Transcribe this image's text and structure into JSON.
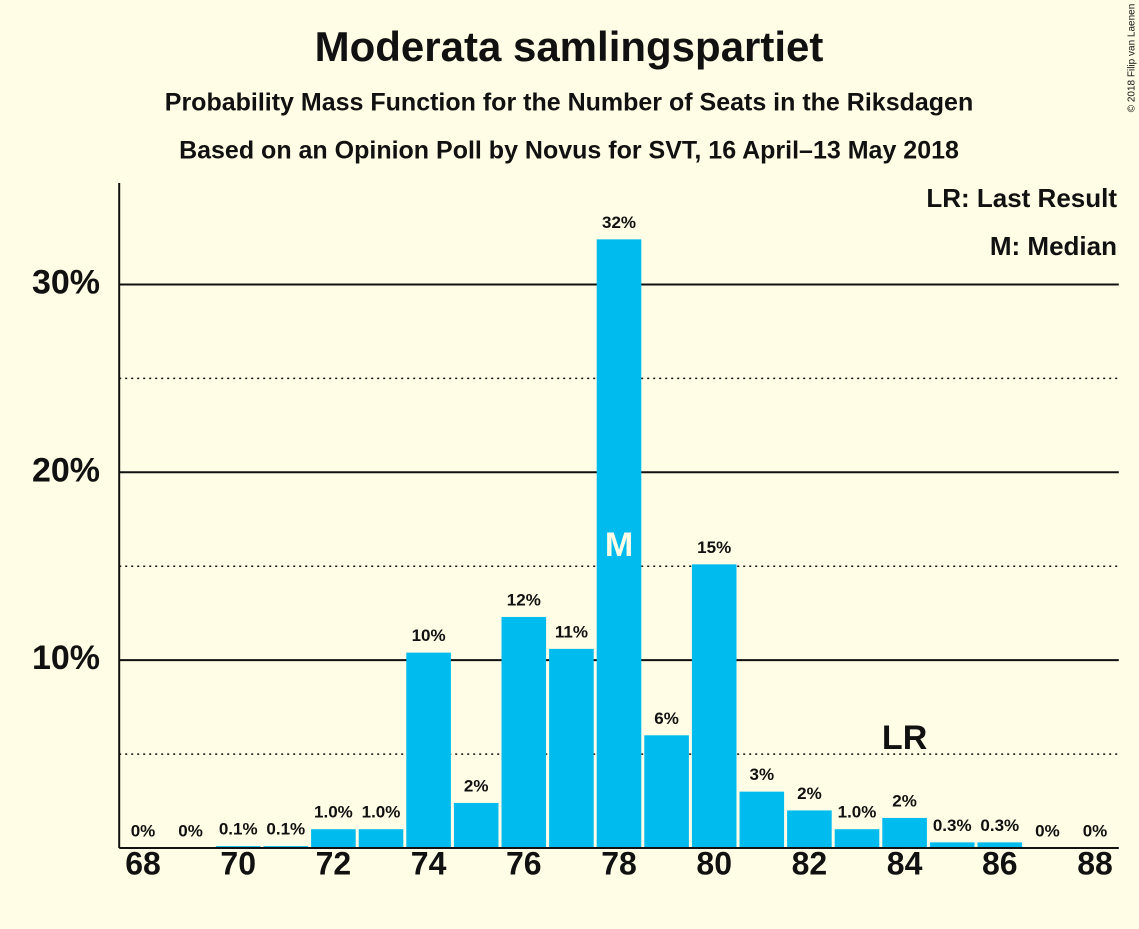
{
  "chart_data": {
    "type": "bar",
    "title": "Moderata samlingspartiet",
    "subtitle": "Probability Mass Function for the Number of Seats in the Riksdagen",
    "subtitle2": "Based on an Opinion Poll by Novus for SVT, 16 April–13 May 2018",
    "copyright": "© 2018 Filip van Laenen",
    "legend": [
      "LR: Last Result",
      "M: Median"
    ],
    "categories": [
      68,
      null,
      70,
      null,
      72,
      null,
      74,
      null,
      76,
      null,
      78,
      null,
      80,
      null,
      82,
      null,
      84,
      null,
      86,
      null,
      88
    ],
    "seats": [
      68,
      69,
      70,
      71,
      72,
      73,
      74,
      75,
      76,
      77,
      78,
      79,
      80,
      81,
      82,
      83,
      84,
      85,
      86,
      87,
      88
    ],
    "values": [
      0,
      0,
      0.1,
      0.1,
      1.0,
      1.0,
      10.4,
      2.4,
      12.3,
      10.6,
      32.4,
      6.0,
      15.1,
      3.0,
      2.0,
      1.0,
      1.6,
      0.3,
      0.3,
      0,
      0
    ],
    "value_labels": [
      "0%",
      "0%",
      "0.1%",
      "0.1%",
      "1.0%",
      "1.0%",
      "10%",
      "2%",
      "12%",
      "11%",
      "32%",
      "6%",
      "15%",
      "3%",
      "2%",
      "1.0%",
      "2%",
      "0.3%",
      "0.3%",
      "0%",
      "0%"
    ],
    "color": "#00bbee",
    "median": 78,
    "median_label": "M",
    "last_result": 84,
    "last_result_label": "LR",
    "ylim": [
      0,
      35.4
    ],
    "yticks": [
      {
        "value": 10,
        "label": "10%"
      },
      {
        "value": 20,
        "label": "20%"
      },
      {
        "value": 30,
        "label": "30%"
      }
    ],
    "y_minor_grid": [
      5,
      15,
      25
    ],
    "grid": true
  }
}
